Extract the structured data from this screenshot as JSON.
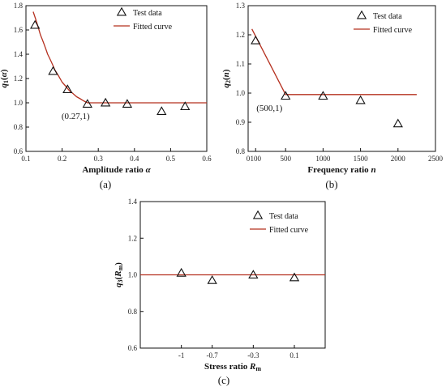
{
  "colors": {
    "fit": "#b5301f",
    "marker": "#111111",
    "axis": "#111111"
  },
  "legend": {
    "test": "Test data",
    "fit": "Fitted curve"
  },
  "chart_data": [
    {
      "type": "scatter",
      "panel": "(a)",
      "xlabel": "Amplitude ratio α",
      "ylabel": "q1(α)",
      "xlim": [
        0.1,
        0.6
      ],
      "ylim": [
        0.6,
        1.8
      ],
      "xticks": [
        "0.1",
        "0.2",
        "0.3",
        "0.4",
        "0.5",
        "0.6"
      ],
      "yticks": [
        "0.6",
        "0.8",
        "1.0",
        "1.2",
        "1.4",
        "1.6",
        "1.8"
      ],
      "series": [
        {
          "name": "Test data",
          "x": [
            0.125,
            0.175,
            0.215,
            0.27,
            0.32,
            0.38,
            0.475,
            0.54
          ],
          "y": [
            1.64,
            1.26,
            1.11,
            0.99,
            1.0,
            0.99,
            0.93,
            0.97
          ]
        },
        {
          "name": "Fitted curve",
          "x": [
            0.12,
            0.14,
            0.16,
            0.18,
            0.2,
            0.22,
            0.24,
            0.26,
            0.27,
            0.28,
            0.3,
            0.6
          ],
          "y": [
            1.75,
            1.56,
            1.4,
            1.27,
            1.17,
            1.1,
            1.05,
            1.015,
            1.0,
            1.0,
            1.0,
            1.0
          ]
        }
      ],
      "annotation": {
        "text": "(0.27,1)",
        "x": 0.27,
        "y": 1.0
      },
      "grid": false,
      "legend_position": "top-right"
    },
    {
      "type": "scatter",
      "panel": "(b)",
      "xlabel": "Frequency ratio n",
      "ylabel": "q2(n)",
      "xlim": [
        0,
        2500
      ],
      "ylim": [
        0.8,
        1.3
      ],
      "xticks": [
        "0",
        "100",
        "500",
        "1000",
        "1500",
        "2000",
        "2500"
      ],
      "xtick_values": [
        0,
        100,
        500,
        1000,
        1500,
        2000,
        2500
      ],
      "yticks": [
        "0.8",
        "0.9",
        "1.0",
        "1.1",
        "1.2",
        "1.3"
      ],
      "series": [
        {
          "name": "Test data",
          "x": [
            100,
            500,
            1000,
            1500,
            2000
          ],
          "y": [
            1.18,
            0.99,
            0.99,
            0.975,
            0.895
          ]
        },
        {
          "name": "Fitted curve",
          "x": [
            50,
            500,
            2250
          ],
          "y": [
            1.22,
            0.995,
            0.995
          ]
        }
      ],
      "annotation": {
        "text": "(500,1)",
        "x": 500,
        "y": 1.0
      },
      "grid": false,
      "legend_position": "top-right"
    },
    {
      "type": "scatter",
      "panel": "(c)",
      "xlabel": "Stress ratio Rm",
      "ylabel": "q3(Rm)",
      "xlim": [
        -1.4,
        0.4
      ],
      "ylim": [
        0.6,
        1.4
      ],
      "xticks": [
        "-1",
        "-0.7",
        "-0.3",
        "0.1"
      ],
      "xtick_values": [
        -1,
        -0.7,
        -0.3,
        0.1
      ],
      "yticks": [
        "0.6",
        "0.8",
        "1.0",
        "1.2",
        "1.4"
      ],
      "series": [
        {
          "name": "Test data",
          "x": [
            -1,
            -0.7,
            -0.3,
            0.1
          ],
          "y": [
            1.01,
            0.97,
            1.0,
            0.985
          ]
        },
        {
          "name": "Fitted curve",
          "x": [
            -1.4,
            0.4
          ],
          "y": [
            1.0,
            1.0
          ]
        }
      ],
      "grid": false,
      "legend_position": "top-right"
    }
  ]
}
